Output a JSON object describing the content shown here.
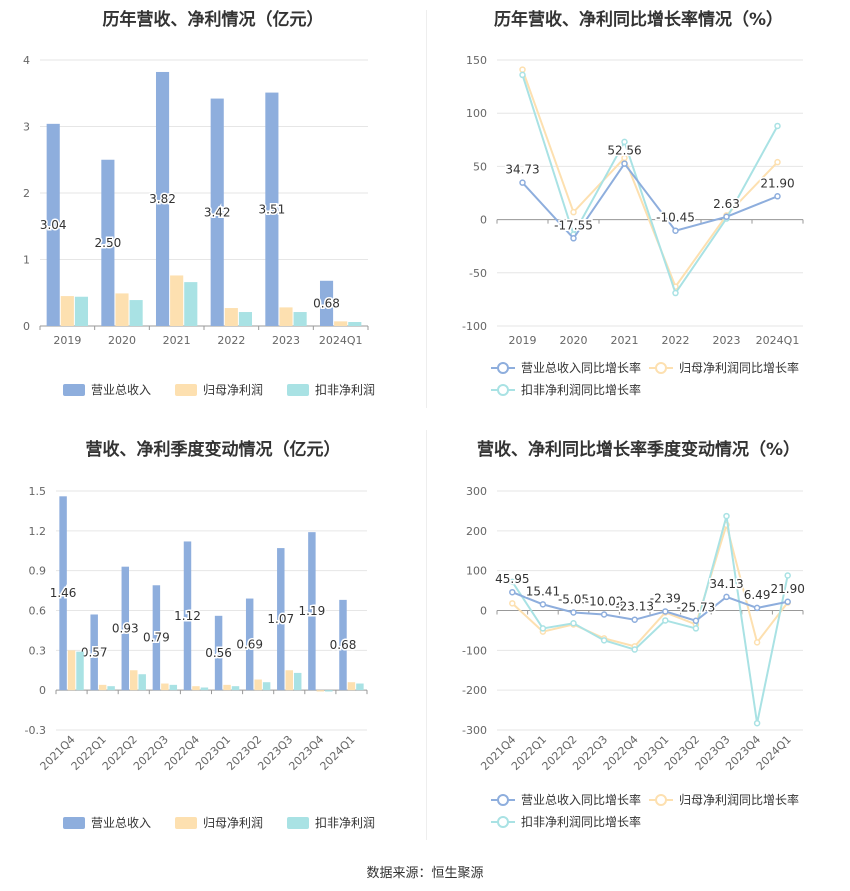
{
  "footer": "数据来源：恒生聚源",
  "colors": {
    "revenue": "#8eaedd",
    "netprofit": "#fde0b0",
    "deducted": "#a9e2e4",
    "grid": "#e6e6e6",
    "axis": "#999999",
    "text": "#333333"
  },
  "legend_bar": [
    "营业总收入",
    "归母净利润",
    "扣非净利润"
  ],
  "legend_line": [
    "营业总收入同比增长率",
    "归母净利润同比增长率",
    "扣非净利润同比增长率"
  ],
  "chart_data": [
    {
      "id": "c1",
      "type": "bar",
      "title": "历年营收、净利情况（亿元）",
      "categories": [
        "2019",
        "2020",
        "2021",
        "2022",
        "2023",
        "2024Q1"
      ],
      "ylim": [
        0,
        4
      ],
      "yticks": [
        0,
        1,
        2,
        3,
        4
      ],
      "series": [
        {
          "name": "营业总收入",
          "values": [
            3.04,
            2.5,
            3.82,
            3.42,
            3.51,
            0.68
          ],
          "labels": [
            "3.04",
            "2.50",
            "3.82",
            "3.42",
            "3.51",
            "0.68"
          ]
        },
        {
          "name": "归母净利润",
          "values": [
            0.45,
            0.49,
            0.76,
            0.27,
            0.28,
            0.07
          ]
        },
        {
          "name": "扣非净利润",
          "values": [
            0.44,
            0.39,
            0.66,
            0.21,
            0.21,
            0.06
          ]
        }
      ],
      "grid": true,
      "legend": "bottom"
    },
    {
      "id": "c2",
      "type": "line",
      "title": "历年营收、净利同比增长率情况（%）",
      "categories": [
        "2019",
        "2020",
        "2021",
        "2022",
        "2023",
        "2024Q1"
      ],
      "ylim": [
        -100,
        150
      ],
      "yticks": [
        -100,
        -50,
        0,
        50,
        100,
        150
      ],
      "series": [
        {
          "name": "营业总收入同比增长率",
          "values": [
            34.73,
            -17.55,
            52.56,
            -10.45,
            2.63,
            21.9
          ],
          "labels": [
            "34.73",
            "-17.55",
            "52.56",
            "-10.45",
            "2.63",
            "21.90"
          ]
        },
        {
          "name": "归母净利润同比增长率",
          "values": [
            141,
            7,
            58,
            -63,
            4,
            54
          ]
        },
        {
          "name": "扣非净利润同比增长率",
          "values": [
            136,
            -14,
            73,
            -69,
            1,
            88
          ]
        }
      ],
      "grid": true,
      "legend": "bottom"
    },
    {
      "id": "c3",
      "type": "bar",
      "title": "营收、净利季度变动情况（亿元）",
      "categories": [
        "2021Q4",
        "2022Q1",
        "2022Q2",
        "2022Q3",
        "2022Q4",
        "2023Q1",
        "2023Q2",
        "2023Q3",
        "2023Q4",
        "2024Q1"
      ],
      "ylim": [
        -0.3,
        1.5
      ],
      "yticks": [
        -0.3,
        0,
        0.3,
        0.6,
        0.9,
        1.2,
        1.5
      ],
      "series": [
        {
          "name": "营业总收入",
          "values": [
            1.46,
            0.57,
            0.93,
            0.79,
            1.12,
            0.56,
            0.69,
            1.07,
            1.19,
            0.68
          ],
          "labels": [
            "1.46",
            "0.57",
            "0.93",
            "0.79",
            "1.12",
            "0.56",
            "0.69",
            "1.07",
            "1.19",
            "0.68"
          ]
        },
        {
          "name": "归母净利润",
          "values": [
            0.3,
            0.04,
            0.15,
            0.05,
            0.03,
            0.04,
            0.08,
            0.15,
            -0.01,
            0.06
          ]
        },
        {
          "name": "扣非净利润",
          "values": [
            0.29,
            0.03,
            0.12,
            0.04,
            0.02,
            0.03,
            0.06,
            0.13,
            -0.01,
            0.05
          ]
        }
      ],
      "grid": true,
      "legend": "bottom"
    },
    {
      "id": "c4",
      "type": "line",
      "title": "营收、净利同比增长率季度变动情况（%）",
      "categories": [
        "2021Q4",
        "2022Q1",
        "2022Q2",
        "2022Q3",
        "2022Q4",
        "2023Q1",
        "2023Q2",
        "2023Q3",
        "2023Q4",
        "2024Q1"
      ],
      "ylim": [
        -300,
        300
      ],
      "yticks": [
        -300,
        -200,
        -100,
        0,
        100,
        200,
        300
      ],
      "series": [
        {
          "name": "营业总收入同比增长率",
          "values": [
            45.95,
            15.41,
            -5.05,
            -10.02,
            -23.13,
            -2.39,
            -25.73,
            34.13,
            6.49,
            21.9
          ],
          "labels": [
            "45.95",
            "15.41",
            "-5.05",
            "-10.02",
            "-23.13",
            "-2.39",
            "-25.73",
            "34.13",
            "6.49",
            "21.90"
          ]
        },
        {
          "name": "归母净利润同比增长率",
          "values": [
            18,
            -53,
            -35,
            -70,
            -90,
            -5,
            -35,
            215,
            -80,
            20
          ]
        },
        {
          "name": "扣非净利润同比增长率",
          "values": [
            72,
            -45,
            -32,
            -75,
            -98,
            -25,
            -45,
            237,
            -283,
            88
          ]
        }
      ],
      "grid": true,
      "legend": "bottom"
    }
  ]
}
